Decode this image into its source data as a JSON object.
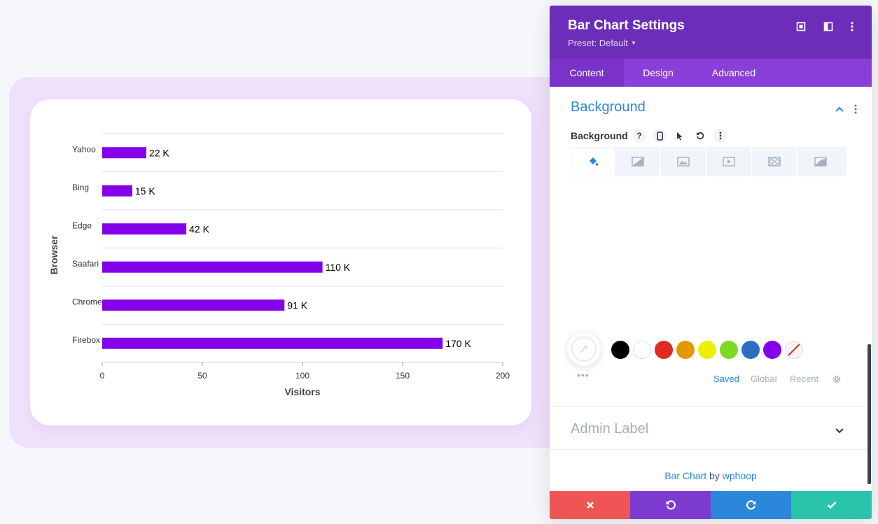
{
  "chart_data": {
    "type": "bar",
    "orientation": "horizontal",
    "categories": [
      "Yahoo",
      "Bing",
      "Edge",
      "Saafari",
      "Chrome",
      "Firebox"
    ],
    "values": [
      22,
      15,
      42,
      110,
      91,
      170
    ],
    "data_labels": [
      "22 K",
      "15 K",
      "42 K",
      "110 K",
      "91 K",
      "170 K"
    ],
    "xlabel": "Visitors",
    "ylabel": "Browser",
    "xlim": [
      0,
      200
    ],
    "xticks": [
      0,
      50,
      100,
      150,
      200
    ],
    "grid": true,
    "color": "#8300e9"
  },
  "panel": {
    "title": "Bar Chart Settings",
    "preset": "Preset: Default",
    "tabs": [
      "Content",
      "Design",
      "Advanced"
    ],
    "section_title": "Background",
    "field_label": "Background",
    "swatches": [
      "#000000",
      "#ffffff",
      "#e02b20",
      "#e09900",
      "#edf000",
      "#7cda24",
      "#2b6fc2",
      "#8300e9"
    ],
    "palette_tabs": [
      "Saved",
      "Global",
      "Recent"
    ],
    "admin_label": "Admin Label",
    "footer": {
      "module": "Bar Chart",
      "by": "by",
      "author": "wphoop"
    },
    "colors": {
      "header": "#6c2eb9",
      "tabs": "#8b3fd9",
      "accent": "#2b87da",
      "cancel": "#ef5555",
      "undo": "#7e3bd0",
      "redo": "#2b87da",
      "save": "#29c4a9"
    }
  }
}
